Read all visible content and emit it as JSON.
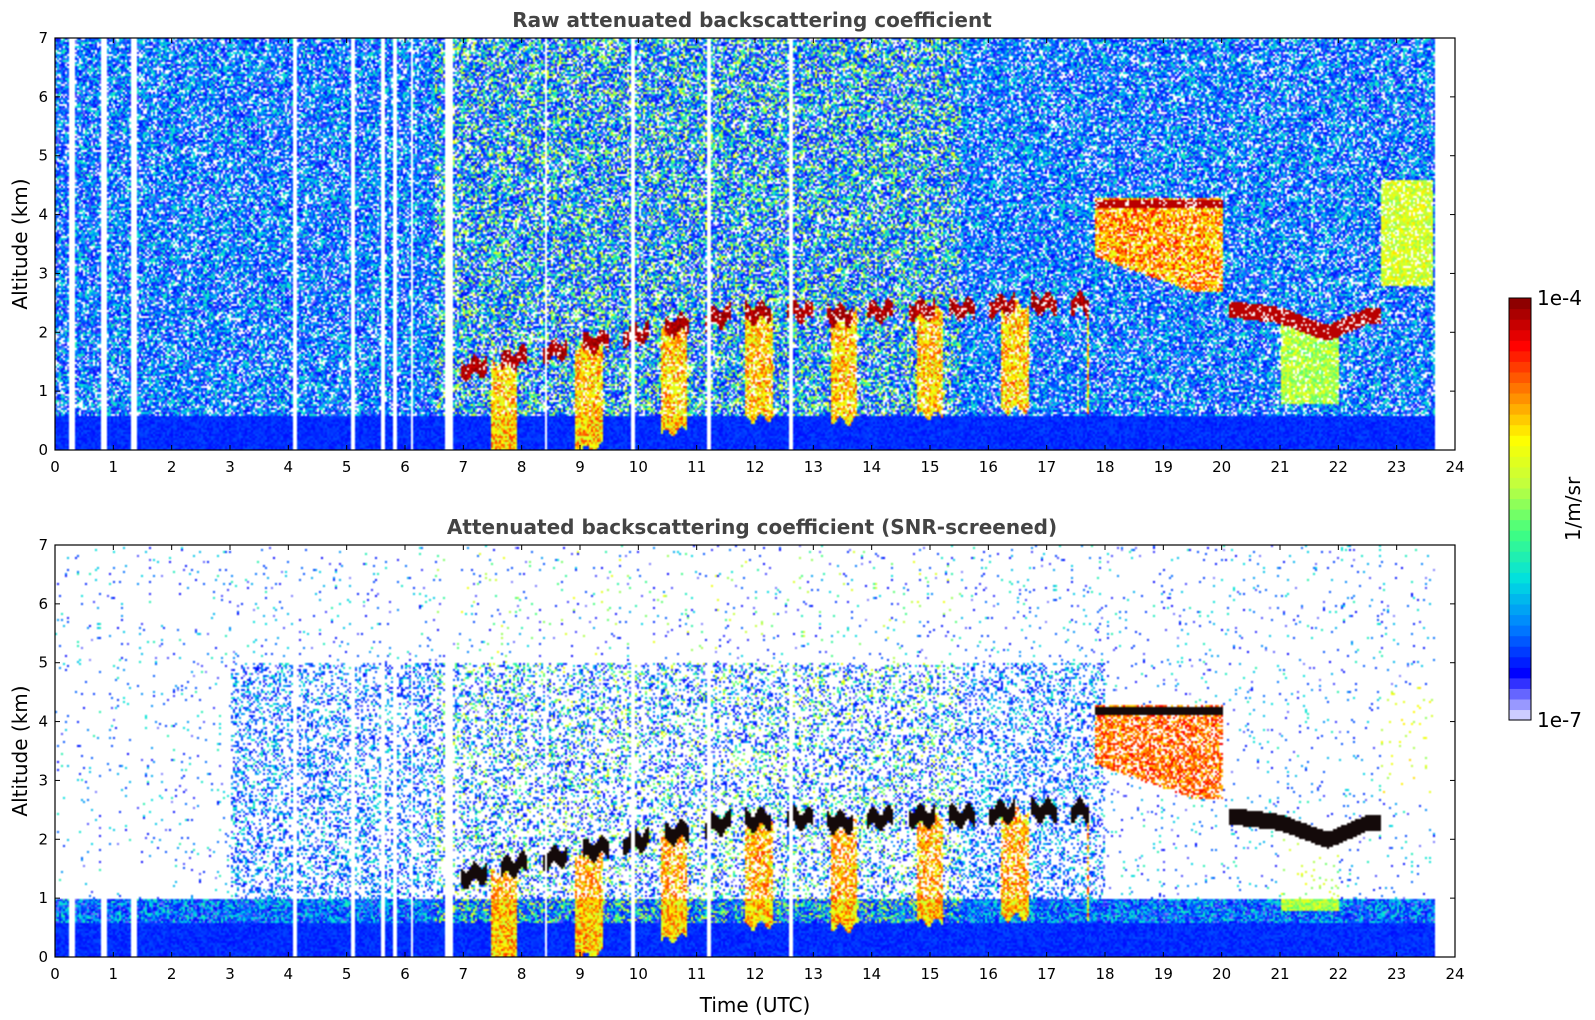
{
  "chart_data": [
    {
      "type": "heatmap",
      "title": "Raw attenuated backscattering coefficient",
      "xlabel": "",
      "ylabel": "Altitude (km)",
      "xlim": [
        0,
        24
      ],
      "ylim": [
        0,
        7
      ],
      "xticks": [
        "0",
        "1",
        "2",
        "3",
        "4",
        "5",
        "6",
        "7",
        "8",
        "9",
        "10",
        "11",
        "12",
        "13",
        "14",
        "15",
        "16",
        "17",
        "18",
        "19",
        "20",
        "21",
        "22",
        "23",
        "24"
      ],
      "yticks": [
        "0",
        "1",
        "2",
        "3",
        "4",
        "5",
        "6",
        "7"
      ],
      "data_end_time": 23.65,
      "data_gaps": [
        0.25,
        0.3,
        0.8,
        0.85,
        1.3,
        1.35,
        4.1,
        5.1,
        5.6,
        5.8,
        6.1,
        6.7,
        6.78,
        8.4,
        9.9,
        11.2,
        12.6
      ],
      "features": {
        "boundary_layer_top_km": 0.6,
        "cloud_base_points": [
          [
            6.7,
            1.3
          ],
          [
            7.5,
            1.5
          ],
          [
            8.5,
            1.7
          ],
          [
            9.5,
            1.9
          ],
          [
            10.5,
            2.1
          ],
          [
            11.5,
            2.3
          ],
          [
            12.5,
            2.4
          ],
          [
            13.5,
            2.3
          ],
          [
            14.5,
            2.4
          ],
          [
            15.5,
            2.4
          ],
          [
            16.5,
            2.5
          ],
          [
            17.5,
            2.5
          ]
        ],
        "late_cloud_points": [
          [
            20.2,
            2.4
          ],
          [
            21,
            2.3
          ],
          [
            21.8,
            2.0
          ],
          [
            22.5,
            2.3
          ]
        ],
        "high_cloud": {
          "t": [
            17.8,
            20.0
          ],
          "top_km": 4.3
        }
      }
    },
    {
      "type": "heatmap",
      "title": "Attenuated backscattering coefficient (SNR-screened)",
      "xlabel": "Time (UTC)",
      "ylabel": "Altitude (km)",
      "xlim": [
        0,
        24
      ],
      "ylim": [
        0,
        7
      ],
      "xticks": [
        "0",
        "1",
        "2",
        "3",
        "4",
        "5",
        "6",
        "7",
        "8",
        "9",
        "10",
        "11",
        "12",
        "13",
        "14",
        "15",
        "16",
        "17",
        "18",
        "19",
        "20",
        "21",
        "22",
        "23",
        "24"
      ],
      "yticks": [
        "0",
        "1",
        "2",
        "3",
        "4",
        "5",
        "6",
        "7"
      ],
      "data_end_time": 23.65
    }
  ],
  "colorbar": {
    "label": "1/m/sr",
    "max_label": "1e-4",
    "min_label": "1e-7",
    "colormap": [
      "#e6e6ff",
      "#0000ff",
      "#0080ff",
      "#00e0e0",
      "#40ff80",
      "#c0ff40",
      "#ffff00",
      "#ff8000",
      "#ff0000",
      "#800000"
    ],
    "levels": 40
  }
}
